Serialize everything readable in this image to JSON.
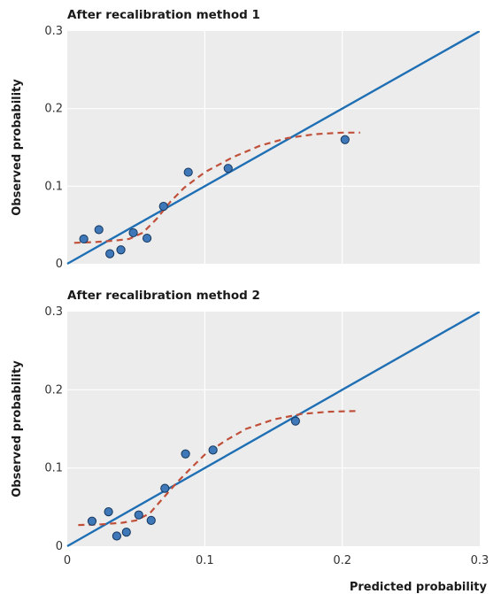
{
  "colors": {
    "panel_bg": "#ececec",
    "gridline": "#ffffff",
    "identity_line": "#1f6fb4",
    "smooth_curve": "#c0503a",
    "point_fill": "#3f78b8",
    "point_stroke": "#15375e"
  },
  "chart_data": [
    {
      "type": "scatter",
      "title": "After recalibration method 1",
      "xlabel": "",
      "ylabel": "Observed probability",
      "xlim": [
        0,
        0.3
      ],
      "ylim": [
        0,
        0.3
      ],
      "yticks": [
        "0",
        "0.1",
        "0.2",
        "0.3"
      ],
      "xticks": [],
      "grid": true,
      "series": [
        {
          "kind": "points",
          "points": [
            {
              "x": 0.012,
              "y": 0.032
            },
            {
              "x": 0.023,
              "y": 0.044
            },
            {
              "x": 0.031,
              "y": 0.013
            },
            {
              "x": 0.039,
              "y": 0.018
            },
            {
              "x": 0.048,
              "y": 0.04
            },
            {
              "x": 0.058,
              "y": 0.033
            },
            {
              "x": 0.07,
              "y": 0.074
            },
            {
              "x": 0.088,
              "y": 0.118
            },
            {
              "x": 0.117,
              "y": 0.123
            },
            {
              "x": 0.202,
              "y": 0.16
            }
          ]
        },
        {
          "kind": "identity-line",
          "points": [
            {
              "x": 0,
              "y": 0
            },
            {
              "x": 0.3,
              "y": 0.3
            }
          ]
        },
        {
          "kind": "smooth-curve",
          "points": [
            {
              "x": 0.005,
              "y": 0.027
            },
            {
              "x": 0.02,
              "y": 0.028
            },
            {
              "x": 0.035,
              "y": 0.03
            },
            {
              "x": 0.045,
              "y": 0.032
            },
            {
              "x": 0.055,
              "y": 0.04
            },
            {
              "x": 0.065,
              "y": 0.058
            },
            {
              "x": 0.075,
              "y": 0.08
            },
            {
              "x": 0.085,
              "y": 0.098
            },
            {
              "x": 0.1,
              "y": 0.118
            },
            {
              "x": 0.12,
              "y": 0.137
            },
            {
              "x": 0.14,
              "y": 0.152
            },
            {
              "x": 0.16,
              "y": 0.162
            },
            {
              "x": 0.18,
              "y": 0.167
            },
            {
              "x": 0.2,
              "y": 0.169
            },
            {
              "x": 0.213,
              "y": 0.169
            }
          ]
        }
      ]
    },
    {
      "type": "scatter",
      "title": "After recalibration method 2",
      "xlabel": "Predicted probability",
      "ylabel": "Observed probability",
      "xlim": [
        0,
        0.3
      ],
      "ylim": [
        0,
        0.3
      ],
      "yticks": [
        "0",
        "0.1",
        "0.2",
        "0.3"
      ],
      "xticks": [
        "0",
        "0.1",
        "0.2",
        "0.3"
      ],
      "grid": true,
      "series": [
        {
          "kind": "points",
          "points": [
            {
              "x": 0.018,
              "y": 0.032
            },
            {
              "x": 0.03,
              "y": 0.044
            },
            {
              "x": 0.036,
              "y": 0.013
            },
            {
              "x": 0.043,
              "y": 0.018
            },
            {
              "x": 0.052,
              "y": 0.04
            },
            {
              "x": 0.061,
              "y": 0.033
            },
            {
              "x": 0.071,
              "y": 0.074
            },
            {
              "x": 0.086,
              "y": 0.118
            },
            {
              "x": 0.106,
              "y": 0.123
            },
            {
              "x": 0.166,
              "y": 0.16
            }
          ]
        },
        {
          "kind": "identity-line",
          "points": [
            {
              "x": 0,
              "y": 0
            },
            {
              "x": 0.3,
              "y": 0.3
            }
          ]
        },
        {
          "kind": "smooth-curve",
          "points": [
            {
              "x": 0.008,
              "y": 0.027
            },
            {
              "x": 0.025,
              "y": 0.028
            },
            {
              "x": 0.04,
              "y": 0.03
            },
            {
              "x": 0.05,
              "y": 0.033
            },
            {
              "x": 0.06,
              "y": 0.042
            },
            {
              "x": 0.07,
              "y": 0.062
            },
            {
              "x": 0.08,
              "y": 0.082
            },
            {
              "x": 0.09,
              "y": 0.1
            },
            {
              "x": 0.1,
              "y": 0.117
            },
            {
              "x": 0.115,
              "y": 0.135
            },
            {
              "x": 0.13,
              "y": 0.15
            },
            {
              "x": 0.15,
              "y": 0.162
            },
            {
              "x": 0.17,
              "y": 0.169
            },
            {
              "x": 0.19,
              "y": 0.172
            },
            {
              "x": 0.212,
              "y": 0.173
            }
          ]
        }
      ]
    }
  ]
}
